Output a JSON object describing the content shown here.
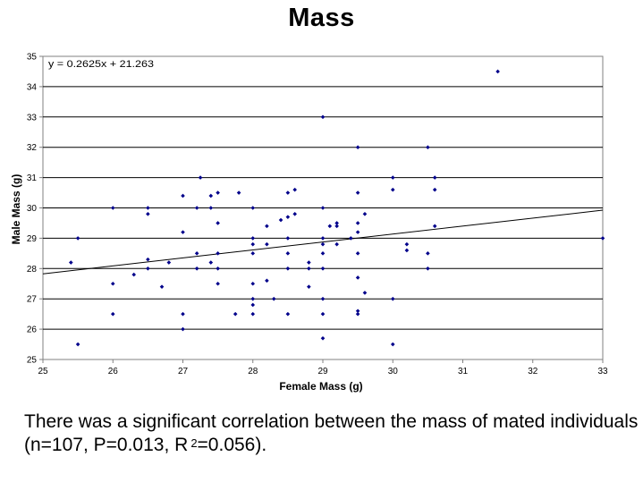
{
  "chart_data": {
    "type": "scatter",
    "title": "Mass",
    "xlabel": "Female Mass (g)",
    "ylabel": "Male Mass (g)",
    "xlim": [
      25,
      33
    ],
    "ylim": [
      25,
      35
    ],
    "xticks": [
      "25",
      "26",
      "27",
      "28",
      "29",
      "30",
      "31",
      "32",
      "33"
    ],
    "yticks": [
      "25",
      "26",
      "27",
      "28",
      "29",
      "30",
      "31",
      "32",
      "33",
      "34",
      "35"
    ],
    "grid": "horizontal",
    "trendline": {
      "label": "y = 0.2625x + 21.263",
      "slope": 0.2625,
      "intercept": 21.263
    },
    "marker_color": "#00008b",
    "points": [
      [
        25.4,
        28.2
      ],
      [
        25.5,
        29.0
      ],
      [
        25.5,
        25.5
      ],
      [
        26.0,
        30.0
      ],
      [
        26.0,
        27.5
      ],
      [
        26.0,
        26.5
      ],
      [
        26.3,
        27.8
      ],
      [
        26.5,
        30.0
      ],
      [
        26.5,
        29.8
      ],
      [
        26.5,
        28.3
      ],
      [
        26.5,
        28.0
      ],
      [
        26.7,
        27.4
      ],
      [
        26.8,
        28.2
      ],
      [
        27.0,
        30.4
      ],
      [
        27.0,
        29.2
      ],
      [
        27.0,
        26.5
      ],
      [
        27.0,
        26.0
      ],
      [
        27.2,
        30.0
      ],
      [
        27.2,
        28.5
      ],
      [
        27.2,
        28.0
      ],
      [
        27.25,
        31.0
      ],
      [
        27.4,
        30.4
      ],
      [
        27.4,
        30.0
      ],
      [
        27.4,
        28.2
      ],
      [
        27.5,
        30.5
      ],
      [
        27.5,
        29.5
      ],
      [
        27.5,
        28.5
      ],
      [
        27.5,
        28.0
      ],
      [
        27.5,
        27.5
      ],
      [
        27.75,
        26.5
      ],
      [
        27.8,
        30.5
      ],
      [
        28.0,
        30.0
      ],
      [
        28.0,
        29.0
      ],
      [
        28.0,
        28.8
      ],
      [
        28.0,
        28.5
      ],
      [
        28.0,
        27.5
      ],
      [
        28.0,
        27.0
      ],
      [
        28.0,
        26.8
      ],
      [
        28.0,
        26.5
      ],
      [
        28.2,
        29.4
      ],
      [
        28.2,
        28.8
      ],
      [
        28.2,
        27.6
      ],
      [
        28.3,
        27.0
      ],
      [
        28.4,
        29.6
      ],
      [
        28.5,
        30.5
      ],
      [
        28.5,
        29.7
      ],
      [
        28.5,
        29.0
      ],
      [
        28.5,
        28.5
      ],
      [
        28.5,
        28.0
      ],
      [
        28.5,
        26.5
      ],
      [
        28.6,
        30.6
      ],
      [
        28.6,
        29.8
      ],
      [
        28.8,
        28.2
      ],
      [
        28.8,
        28.0
      ],
      [
        28.8,
        27.4
      ],
      [
        29.0,
        33.0
      ],
      [
        29.0,
        30.0
      ],
      [
        29.0,
        29.0
      ],
      [
        29.0,
        28.8
      ],
      [
        29.0,
        28.5
      ],
      [
        29.0,
        28.0
      ],
      [
        29.0,
        27.0
      ],
      [
        29.0,
        26.5
      ],
      [
        29.0,
        25.7
      ],
      [
        29.1,
        29.4
      ],
      [
        29.2,
        29.5
      ],
      [
        29.2,
        29.4
      ],
      [
        29.2,
        28.8
      ],
      [
        29.4,
        29.0
      ],
      [
        29.5,
        32.0
      ],
      [
        29.5,
        30.5
      ],
      [
        29.5,
        29.5
      ],
      [
        29.5,
        29.2
      ],
      [
        29.5,
        28.5
      ],
      [
        29.5,
        27.7
      ],
      [
        29.5,
        26.6
      ],
      [
        29.5,
        26.5
      ],
      [
        29.6,
        29.8
      ],
      [
        29.6,
        27.2
      ],
      [
        30.0,
        31.0
      ],
      [
        30.0,
        30.6
      ],
      [
        30.0,
        27.0
      ],
      [
        30.0,
        25.5
      ],
      [
        30.2,
        28.8
      ],
      [
        30.2,
        28.6
      ],
      [
        30.5,
        32.0
      ],
      [
        30.5,
        28.5
      ],
      [
        30.5,
        28.0
      ],
      [
        30.6,
        31.0
      ],
      [
        30.6,
        30.6
      ],
      [
        30.6,
        29.4
      ],
      [
        31.5,
        34.5
      ],
      [
        33.0,
        29.0
      ]
    ]
  },
  "caption": {
    "text": "There was a significant correlation between the mass of mated individuals (n=107, P=0.013, R",
    "superscript": "2",
    "tail": "=0.056)."
  }
}
